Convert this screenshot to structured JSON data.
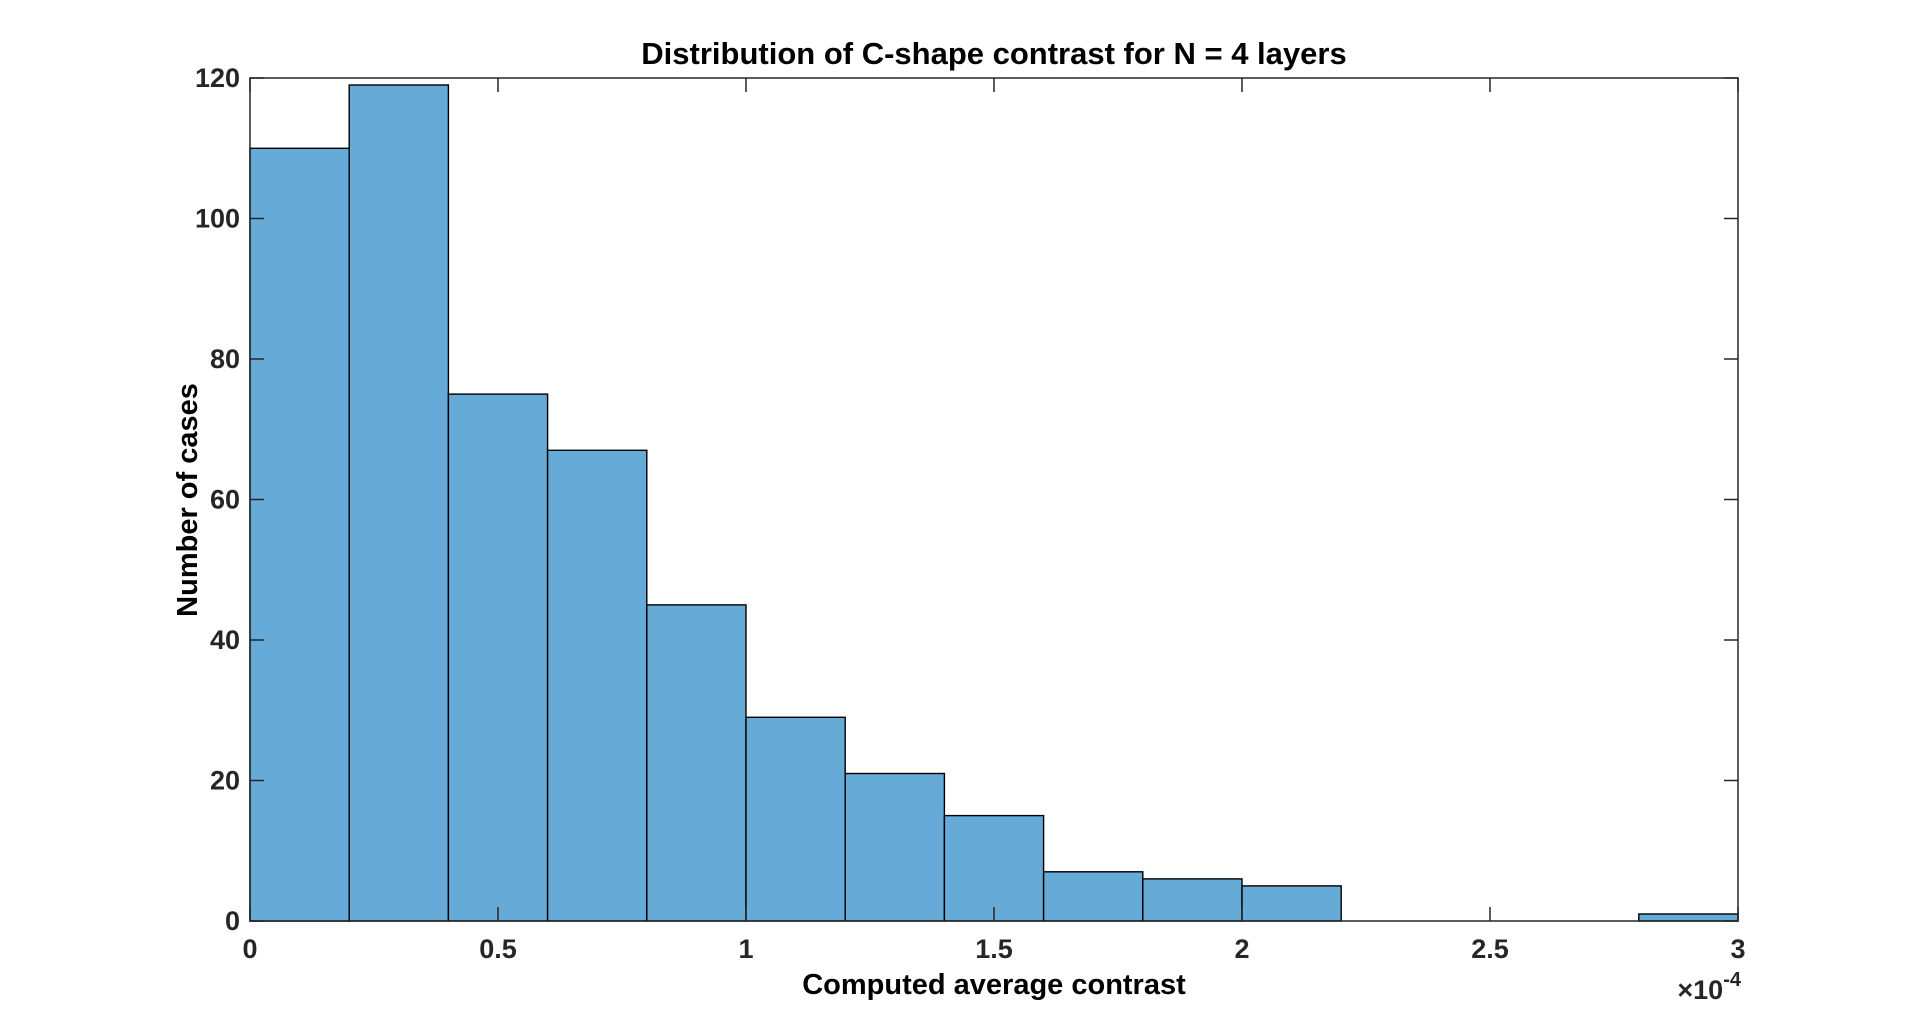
{
  "figure": {
    "title": "Distribution of C-shape contrast for N = 4 layers",
    "xlabel": "Computed average contrast",
    "ylabel": "Number of cases",
    "x_multiplier_base": "×10",
    "x_multiplier_exponent": "-4"
  },
  "chart_data": {
    "type": "bar",
    "subtype": "histogram",
    "title": "Distribution of C-shape contrast for N = 4 layers",
    "xlabel": "Computed average contrast",
    "ylabel": "Number of cases",
    "x_unit_multiplier": "1e-4",
    "bin_edges": [
      0,
      0.2,
      0.4,
      0.6,
      0.8,
      1.0,
      1.2,
      1.4,
      1.6,
      1.8,
      2.0,
      2.2,
      2.4,
      2.6,
      2.8,
      3.0
    ],
    "values": [
      110,
      119,
      75,
      67,
      45,
      29,
      21,
      15,
      7,
      6,
      5,
      0,
      0,
      0,
      1
    ],
    "total_cases": 500,
    "xlim": [
      0,
      3
    ],
    "ylim": [
      0,
      120
    ],
    "xticks": [
      0,
      0.5,
      1,
      1.5,
      2,
      2.5,
      3
    ],
    "xtick_labels": [
      "0",
      "0.5",
      "1",
      "1.5",
      "2",
      "2.5",
      "3"
    ],
    "yticks": [
      0,
      20,
      40,
      60,
      80,
      100,
      120
    ],
    "ytick_labels": [
      "0",
      "20",
      "40",
      "60",
      "80",
      "100",
      "120"
    ],
    "grid": false,
    "legend": "none",
    "box": true,
    "tick_direction": "in",
    "colors": {
      "bar_fill": "#66AAD7",
      "bar_edge": "#000000",
      "axis": "#262626",
      "tick_label": "#262626",
      "title": "#000000",
      "axis_label": "#000000",
      "background": "#ffffff"
    }
  }
}
